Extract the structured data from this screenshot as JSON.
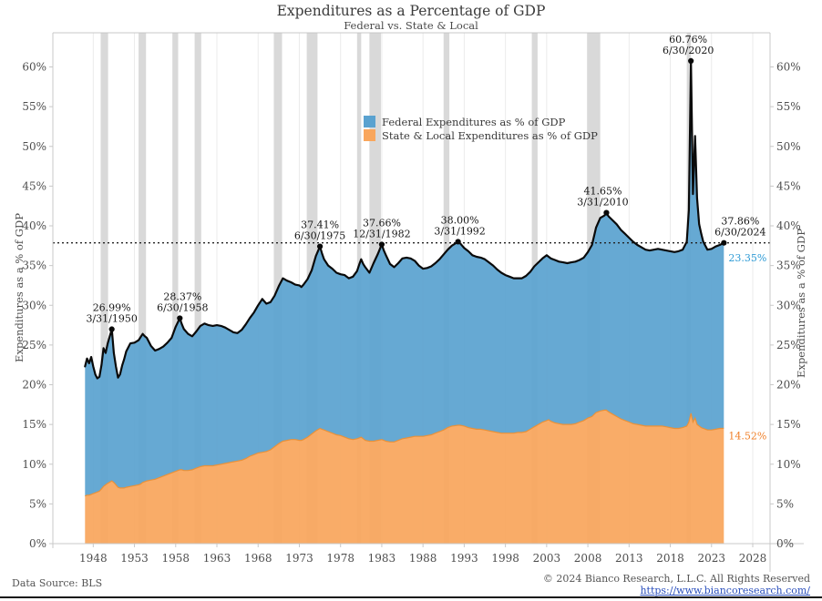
{
  "chart_data": {
    "type": "area",
    "stacked_note": "Orange = State & Local (0 to value); Blue band = Federal, drawn between State & Local and Total; black line = Total (Federal + State & Local) as % of GDP",
    "title": "Expenditures as a Percentage of GDP",
    "subtitle": "Federal vs. State & Local",
    "xlabel": "",
    "ylabel_left": "Expenditures as a % of GDP",
    "ylabel_right": "Expenditures as a % of GDP",
    "xlim": [
      1943.1,
      2030.1
    ],
    "ylim": [
      0,
      64.3
    ],
    "grid": "vertical-only",
    "legend_position": "upper-center-inside",
    "x_ticks": {
      "values": [
        1948,
        1953,
        1958,
        1963,
        1968,
        1973,
        1978,
        1983,
        1988,
        1993,
        1998,
        2003,
        2008,
        2013,
        2018,
        2023,
        2028
      ],
      "labels": [
        "1948",
        "1953",
        "1958",
        "1963",
        "1968",
        "1973",
        "1978",
        "1983",
        "1988",
        "1993",
        "1998",
        "2003",
        "2008",
        "2013",
        "2018",
        "2023",
        "2028"
      ]
    },
    "y_ticks": {
      "values": [
        0,
        5,
        10,
        15,
        20,
        25,
        30,
        35,
        40,
        45,
        50,
        55,
        60
      ],
      "labels": [
        "0%",
        "5%",
        "10%",
        "15%",
        "20%",
        "25%",
        "30%",
        "35%",
        "40%",
        "45%",
        "50%",
        "55%",
        "60%"
      ]
    },
    "hline": {
      "value": 37.86,
      "style": "dotted",
      "color": "#222222"
    },
    "recessions": [
      [
        1948.9,
        1949.8
      ],
      [
        1953.5,
        1954.4
      ],
      [
        1957.6,
        1958.3
      ],
      [
        1960.3,
        1961.1
      ],
      [
        1969.9,
        1970.9
      ],
      [
        1973.9,
        1975.2
      ],
      [
        1980.0,
        1980.5
      ],
      [
        1981.5,
        1982.9
      ],
      [
        1990.5,
        1991.2
      ],
      [
        2001.2,
        2001.9
      ],
      [
        2007.9,
        2009.5
      ],
      [
        2020.0,
        2020.5
      ]
    ],
    "points_format": [
      "year",
      "total_pct_of_gdp",
      "state_local_pct_of_gdp"
    ],
    "points": [
      [
        1947,
        22.3,
        6
      ],
      [
        1947.25,
        23.3,
        6.1
      ],
      [
        1947.5,
        22.7,
        6.1
      ],
      [
        1947.75,
        23.5,
        6.2
      ],
      [
        1948,
        22.3,
        6.3
      ],
      [
        1948.25,
        21.3,
        6.4
      ],
      [
        1948.5,
        20.8,
        6.5
      ],
      [
        1948.75,
        21,
        6.6
      ],
      [
        1949,
        22.5,
        6.9
      ],
      [
        1949.25,
        24.6,
        7.2
      ],
      [
        1949.5,
        24,
        7.4
      ],
      [
        1949.75,
        25.2,
        7.6
      ],
      [
        1950.25,
        26.99,
        7.9
      ],
      [
        1950.5,
        24,
        7.7
      ],
      [
        1950.75,
        22.3,
        7.4
      ],
      [
        1951,
        20.9,
        7.1
      ],
      [
        1951.25,
        21.3,
        7
      ],
      [
        1951.5,
        22.4,
        7
      ],
      [
        1951.75,
        23.2,
        7
      ],
      [
        1952,
        24.2,
        7.1
      ],
      [
        1952.5,
        25.2,
        7.2
      ],
      [
        1953,
        25.3,
        7.3
      ],
      [
        1953.5,
        25.6,
        7.4
      ],
      [
        1953.75,
        26,
        7.5
      ],
      [
        1954,
        26.4,
        7.7
      ],
      [
        1954.25,
        26.1,
        7.8
      ],
      [
        1954.5,
        25.9,
        7.9
      ],
      [
        1955,
        24.9,
        8
      ],
      [
        1955.5,
        24.3,
        8.1
      ],
      [
        1956,
        24.5,
        8.3
      ],
      [
        1956.5,
        24.8,
        8.5
      ],
      [
        1957,
        25.3,
        8.7
      ],
      [
        1957.5,
        25.9,
        8.9
      ],
      [
        1958,
        27.3,
        9.1
      ],
      [
        1958.5,
        28.37,
        9.3
      ],
      [
        1958.75,
        27.6,
        9.3
      ],
      [
        1959,
        27,
        9.2
      ],
      [
        1959.5,
        26.4,
        9.2
      ],
      [
        1960,
        26.1,
        9.3
      ],
      [
        1960.5,
        26.7,
        9.5
      ],
      [
        1961,
        27.4,
        9.7
      ],
      [
        1961.5,
        27.7,
        9.8
      ],
      [
        1962,
        27.5,
        9.8
      ],
      [
        1962.5,
        27.4,
        9.8
      ],
      [
        1963,
        27.5,
        9.9
      ],
      [
        1963.5,
        27.4,
        10
      ],
      [
        1964,
        27.2,
        10.1
      ],
      [
        1964.5,
        26.9,
        10.2
      ],
      [
        1965,
        26.6,
        10.3
      ],
      [
        1965.5,
        26.5,
        10.4
      ],
      [
        1966,
        26.9,
        10.5
      ],
      [
        1966.5,
        27.6,
        10.7
      ],
      [
        1967,
        28.4,
        11
      ],
      [
        1967.5,
        29.1,
        11.2
      ],
      [
        1968,
        30,
        11.4
      ],
      [
        1968.5,
        30.8,
        11.5
      ],
      [
        1969,
        30.2,
        11.6
      ],
      [
        1969.5,
        30.4,
        11.8
      ],
      [
        1970,
        31.2,
        12.2
      ],
      [
        1970.5,
        32.4,
        12.6
      ],
      [
        1971,
        33.4,
        12.9
      ],
      [
        1971.5,
        33.1,
        13
      ],
      [
        1972,
        32.9,
        13.1
      ],
      [
        1972.5,
        32.6,
        13.1
      ],
      [
        1973,
        32.5,
        13
      ],
      [
        1973.25,
        32.3,
        13
      ],
      [
        1973.5,
        32.6,
        13.1
      ],
      [
        1974,
        33.3,
        13.4
      ],
      [
        1974.5,
        34.4,
        13.8
      ],
      [
        1975,
        36.2,
        14.2
      ],
      [
        1975.5,
        37.41,
        14.5
      ],
      [
        1975.75,
        36.5,
        14.4
      ],
      [
        1976,
        35.8,
        14.3
      ],
      [
        1976.5,
        35,
        14.1
      ],
      [
        1977,
        34.6,
        13.9
      ],
      [
        1977.5,
        34.1,
        13.7
      ],
      [
        1978,
        33.9,
        13.6
      ],
      [
        1978.5,
        33.8,
        13.4
      ],
      [
        1979,
        33.4,
        13.2
      ],
      [
        1979.5,
        33.6,
        13.1
      ],
      [
        1980,
        34.3,
        13.2
      ],
      [
        1980.25,
        35.1,
        13.3
      ],
      [
        1980.5,
        35.8,
        13.4
      ],
      [
        1980.75,
        35.2,
        13.2
      ],
      [
        1981,
        34.8,
        13
      ],
      [
        1981.5,
        34.1,
        12.9
      ],
      [
        1982,
        35.3,
        12.9
      ],
      [
        1982.5,
        36.4,
        13
      ],
      [
        1983,
        37.66,
        13.1
      ],
      [
        1983.25,
        36.9,
        13
      ],
      [
        1983.5,
        36.3,
        12.9
      ],
      [
        1984,
        35.2,
        12.8
      ],
      [
        1984.5,
        34.8,
        12.8
      ],
      [
        1985,
        35.3,
        13
      ],
      [
        1985.5,
        35.9,
        13.2
      ],
      [
        1986,
        36,
        13.3
      ],
      [
        1986.5,
        35.9,
        13.4
      ],
      [
        1987,
        35.6,
        13.5
      ],
      [
        1987.5,
        35,
        13.5
      ],
      [
        1988,
        34.6,
        13.5
      ],
      [
        1988.5,
        34.7,
        13.6
      ],
      [
        1989,
        34.9,
        13.7
      ],
      [
        1989.5,
        35.3,
        13.9
      ],
      [
        1990,
        35.8,
        14.1
      ],
      [
        1990.5,
        36.4,
        14.3
      ],
      [
        1991,
        37,
        14.6
      ],
      [
        1991.5,
        37.5,
        14.8
      ],
      [
        1992.25,
        38,
        14.9
      ],
      [
        1992.5,
        37.8,
        14.9
      ],
      [
        1993,
        37.2,
        14.8
      ],
      [
        1993.5,
        36.8,
        14.6
      ],
      [
        1994,
        36.3,
        14.5
      ],
      [
        1994.5,
        36.1,
        14.4
      ],
      [
        1995,
        36,
        14.4
      ],
      [
        1995.5,
        35.8,
        14.3
      ],
      [
        1996,
        35.4,
        14.2
      ],
      [
        1996.5,
        35,
        14.1
      ],
      [
        1997,
        34.5,
        14
      ],
      [
        1997.5,
        34.1,
        13.9
      ],
      [
        1998,
        33.8,
        13.9
      ],
      [
        1998.5,
        33.6,
        13.9
      ],
      [
        1999,
        33.4,
        13.9
      ],
      [
        1999.5,
        33.4,
        14
      ],
      [
        2000,
        33.4,
        14
      ],
      [
        2000.5,
        33.7,
        14.1
      ],
      [
        2001,
        34.2,
        14.4
      ],
      [
        2001.5,
        34.9,
        14.7
      ],
      [
        2002,
        35.4,
        15
      ],
      [
        2002.5,
        35.9,
        15.3
      ],
      [
        2003,
        36.3,
        15.5
      ],
      [
        2003.25,
        36.1,
        15.6
      ],
      [
        2003.5,
        35.9,
        15.4
      ],
      [
        2004,
        35.7,
        15.2
      ],
      [
        2004.5,
        35.5,
        15.1
      ],
      [
        2005,
        35.4,
        15
      ],
      [
        2005.5,
        35.3,
        15
      ],
      [
        2006,
        35.4,
        15
      ],
      [
        2006.5,
        35.5,
        15.1
      ],
      [
        2007,
        35.7,
        15.3
      ],
      [
        2007.5,
        36,
        15.5
      ],
      [
        2008,
        36.7,
        15.8
      ],
      [
        2008.5,
        37.6,
        16
      ],
      [
        2009,
        39.8,
        16.5
      ],
      [
        2009.5,
        41,
        16.7
      ],
      [
        2010,
        41.3,
        16.8
      ],
      [
        2010.25,
        41.65,
        16.8
      ],
      [
        2010.5,
        41.2,
        16.6
      ],
      [
        2011,
        40.7,
        16.3
      ],
      [
        2011.5,
        40.2,
        16
      ],
      [
        2012,
        39.5,
        15.7
      ],
      [
        2012.5,
        39,
        15.5
      ],
      [
        2013,
        38.5,
        15.3
      ],
      [
        2013.5,
        38,
        15.1
      ],
      [
        2014,
        37.6,
        15
      ],
      [
        2014.5,
        37.3,
        14.9
      ],
      [
        2015,
        37,
        14.8
      ],
      [
        2015.5,
        36.9,
        14.8
      ],
      [
        2016,
        37,
        14.8
      ],
      [
        2016.5,
        37.1,
        14.8
      ],
      [
        2017,
        37,
        14.8
      ],
      [
        2017.5,
        36.9,
        14.7
      ],
      [
        2018,
        36.8,
        14.6
      ],
      [
        2018.5,
        36.7,
        14.5
      ],
      [
        2019,
        36.8,
        14.5
      ],
      [
        2019.5,
        37,
        14.6
      ],
      [
        2020,
        38,
        14.8
      ],
      [
        2020.25,
        42,
        15.3
      ],
      [
        2020.5,
        60.76,
        16.4
      ],
      [
        2020.75,
        44,
        15.3
      ],
      [
        2021,
        51.3,
        15.8
      ],
      [
        2021.25,
        43.5,
        15
      ],
      [
        2021.5,
        40.2,
        14.8
      ],
      [
        2021.75,
        39,
        14.6
      ],
      [
        2022,
        38,
        14.5
      ],
      [
        2022.5,
        37,
        14.3
      ],
      [
        2023,
        37.1,
        14.3
      ],
      [
        2023.5,
        37.4,
        14.4
      ],
      [
        2024,
        37.6,
        14.5
      ],
      [
        2024.5,
        37.86,
        14.52
      ]
    ],
    "annotations": [
      {
        "value": "26.99%",
        "date": "3/31/1950",
        "year": 1950.25,
        "pct": 26.99,
        "dx": 0
      },
      {
        "value": "28.37%",
        "date": "6/30/1958",
        "year": 1958.5,
        "pct": 28.37,
        "dx": 3
      },
      {
        "value": "37.41%",
        "date": "6/30/1975",
        "year": 1975.5,
        "pct": 37.41,
        "dx": 0
      },
      {
        "value": "37.66%",
        "date": "12/31/1982",
        "year": 1983.0,
        "pct": 37.66,
        "dx": 0
      },
      {
        "value": "38.00%",
        "date": "3/31/1992",
        "year": 1992.25,
        "pct": 38.0,
        "dx": 2
      },
      {
        "value": "41.65%",
        "date": "3/31/2010",
        "year": 2010.25,
        "pct": 41.65,
        "dx": -4
      },
      {
        "value": "60.76%",
        "date": "6/30/2020",
        "year": 2020.5,
        "pct": 60.76,
        "dx": -3
      },
      {
        "value": "37.86%",
        "date": "6/30/2024",
        "year": 2024.5,
        "pct": 37.86,
        "dx": 18
      }
    ],
    "side_labels": [
      {
        "label": "23.35%",
        "pct": 36.0,
        "color": "#2E9BD6"
      },
      {
        "label": "14.52%",
        "pct": 13.6,
        "color": "#F07F28"
      }
    ],
    "colors": {
      "federal": "#5AA2D0",
      "state_local": "#F9A65C",
      "state_local_edge": "#E8913A",
      "total_line": "#0a0a0a",
      "recession": "#D9D9D9",
      "grid": "#EBEBEB",
      "spine": "#C8C8C8"
    }
  },
  "legend": [
    {
      "label": "Federal Expenditures as % of GDP"
    },
    {
      "label": "State & Local Expenditures as % of GDP"
    }
  ],
  "footer": {
    "source": "Data Source: BLS",
    "copyright": "© 2024 Bianco Research, L.L.C. All Rights Reserved",
    "link": "https://www.biancoresearch.com/"
  }
}
